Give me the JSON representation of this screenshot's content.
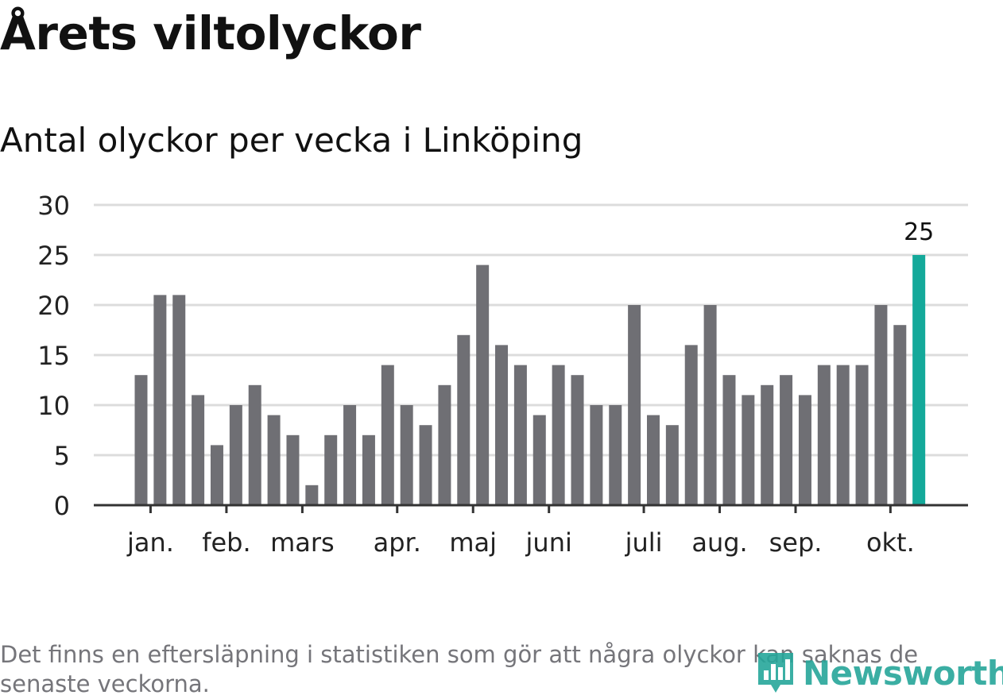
{
  "header": {
    "title": "Årets viltolyckor",
    "subtitle": "Antal olyckor per vecka i Linköping"
  },
  "chart_data": {
    "type": "bar",
    "values": [
      13,
      21,
      21,
      11,
      6,
      10,
      12,
      9,
      7,
      2,
      7,
      10,
      7,
      14,
      10,
      8,
      12,
      17,
      24,
      16,
      14,
      9,
      14,
      13,
      10,
      10,
      20,
      9,
      8,
      16,
      20,
      13,
      11,
      12,
      13,
      11,
      14,
      14,
      14,
      20,
      18,
      25
    ],
    "month_labels": [
      {
        "label": "jan.",
        "week_index": 0.5
      },
      {
        "label": "feb.",
        "week_index": 4.5
      },
      {
        "label": "mars",
        "week_index": 8.5
      },
      {
        "label": "apr.",
        "week_index": 13.5
      },
      {
        "label": "maj",
        "week_index": 17.5
      },
      {
        "label": "juni",
        "week_index": 21.5
      },
      {
        "label": "juli",
        "week_index": 26.5
      },
      {
        "label": "aug.",
        "week_index": 30.5
      },
      {
        "label": "sep.",
        "week_index": 34.5
      },
      {
        "label": "okt.",
        "week_index": 39.5
      }
    ],
    "ylim": [
      0,
      30
    ],
    "yticks": [
      0,
      5,
      10,
      15,
      20,
      25,
      30
    ],
    "grid": true,
    "highlight_index": 41,
    "highlight_label": "25",
    "colors": {
      "bar": "#6f6f74",
      "highlight": "#14a99a",
      "grid": "#dcdcdc",
      "axis": "#333333"
    }
  },
  "footer": {
    "note": "Det finns en eftersläpning i statistiken som gör att några olyckor kan saknas de senaste veckorna.",
    "brand": "Newsworthy",
    "brand_icon": "bar-chart-pin-icon"
  }
}
